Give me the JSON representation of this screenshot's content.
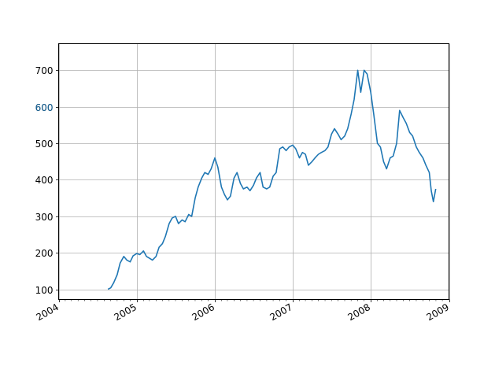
{
  "chart_data": {
    "type": "line",
    "title": "",
    "xlabel": "",
    "ylabel": "",
    "grid": true,
    "xlim": [
      "2004-01-01",
      "2009-01-01"
    ],
    "ylim": [
      72,
      773
    ],
    "x_ticks": [
      "2004",
      "2005",
      "2006",
      "2007",
      "2008",
      "2009"
    ],
    "x_tick_dates": [
      "2004-01-01",
      "2005-01-01",
      "2006-01-01",
      "2007-01-01",
      "2008-01-01",
      "2009-01-01"
    ],
    "y_ticks": [
      100,
      200,
      300,
      400,
      500,
      600,
      700
    ],
    "y_tick_labels": [
      "100",
      "200",
      "300",
      "400",
      "500",
      "600",
      "700"
    ],
    "line_color": "#1f77b4",
    "series": [
      {
        "x": [
          "2004-08-19",
          "2004-09-01",
          "2004-09-15",
          "2004-10-01",
          "2004-10-15",
          "2004-11-01",
          "2004-11-15",
          "2004-12-01",
          "2004-12-15",
          "2005-01-01",
          "2005-01-15",
          "2005-02-01",
          "2005-02-15",
          "2005-03-01",
          "2005-03-15",
          "2005-04-01",
          "2005-04-15",
          "2005-05-01",
          "2005-05-15",
          "2005-06-01",
          "2005-06-15",
          "2005-07-01",
          "2005-07-15",
          "2005-08-01",
          "2005-08-15",
          "2005-09-01",
          "2005-09-15",
          "2005-10-01",
          "2005-10-15",
          "2005-11-01",
          "2005-11-15",
          "2005-12-01",
          "2005-12-15",
          "2006-01-01",
          "2006-01-15",
          "2006-02-01",
          "2006-02-15",
          "2006-03-01",
          "2006-03-15",
          "2006-04-01",
          "2006-04-15",
          "2006-05-01",
          "2006-05-15",
          "2006-06-01",
          "2006-06-15",
          "2006-07-01",
          "2006-07-15",
          "2006-08-01",
          "2006-08-15",
          "2006-09-01",
          "2006-09-15",
          "2006-10-01",
          "2006-10-15",
          "2006-11-01",
          "2006-11-15",
          "2006-12-01",
          "2006-12-15",
          "2007-01-01",
          "2007-01-15",
          "2007-02-01",
          "2007-02-15",
          "2007-03-01",
          "2007-03-15",
          "2007-04-01",
          "2007-04-15",
          "2007-05-01",
          "2007-05-15",
          "2007-06-01",
          "2007-06-15",
          "2007-07-01",
          "2007-07-15",
          "2007-08-01",
          "2007-08-15",
          "2007-09-01",
          "2007-09-15",
          "2007-10-01",
          "2007-10-15",
          "2007-11-01",
          "2007-11-15",
          "2007-12-01",
          "2007-12-15",
          "2008-01-01",
          "2008-01-15",
          "2008-02-01",
          "2008-02-15",
          "2008-03-01",
          "2008-03-15",
          "2008-04-01",
          "2008-04-15",
          "2008-05-01",
          "2008-05-15",
          "2008-06-01",
          "2008-06-15",
          "2008-07-01",
          "2008-07-15",
          "2008-08-01",
          "2008-08-15",
          "2008-09-01",
          "2008-09-15",
          "2008-10-01",
          "2008-10-10",
          "2008-10-20",
          "2008-10-31"
        ],
        "y": [
          100,
          104,
          118,
          140,
          172,
          190,
          180,
          175,
          192,
          198,
          195,
          205,
          190,
          185,
          180,
          190,
          215,
          225,
          245,
          280,
          295,
          300,
          280,
          290,
          285,
          305,
          300,
          350,
          380,
          405,
          420,
          415,
          430,
          460,
          435,
          380,
          360,
          345,
          355,
          405,
          420,
          390,
          375,
          380,
          370,
          385,
          405,
          420,
          380,
          375,
          380,
          410,
          420,
          485,
          490,
          480,
          490,
          495,
          485,
          460,
          475,
          470,
          440,
          450,
          460,
          470,
          475,
          480,
          490,
          525,
          540,
          525,
          510,
          520,
          540,
          580,
          620,
          700,
          640,
          700,
          690,
          640,
          580,
          500,
          490,
          450,
          430,
          460,
          465,
          500,
          590,
          570,
          555,
          530,
          520,
          490,
          475,
          460,
          440,
          420,
          370,
          340,
          375
        ]
      }
    ],
    "overlay_glyph": {
      "text": "600",
      "color": "#1f77b4"
    }
  }
}
